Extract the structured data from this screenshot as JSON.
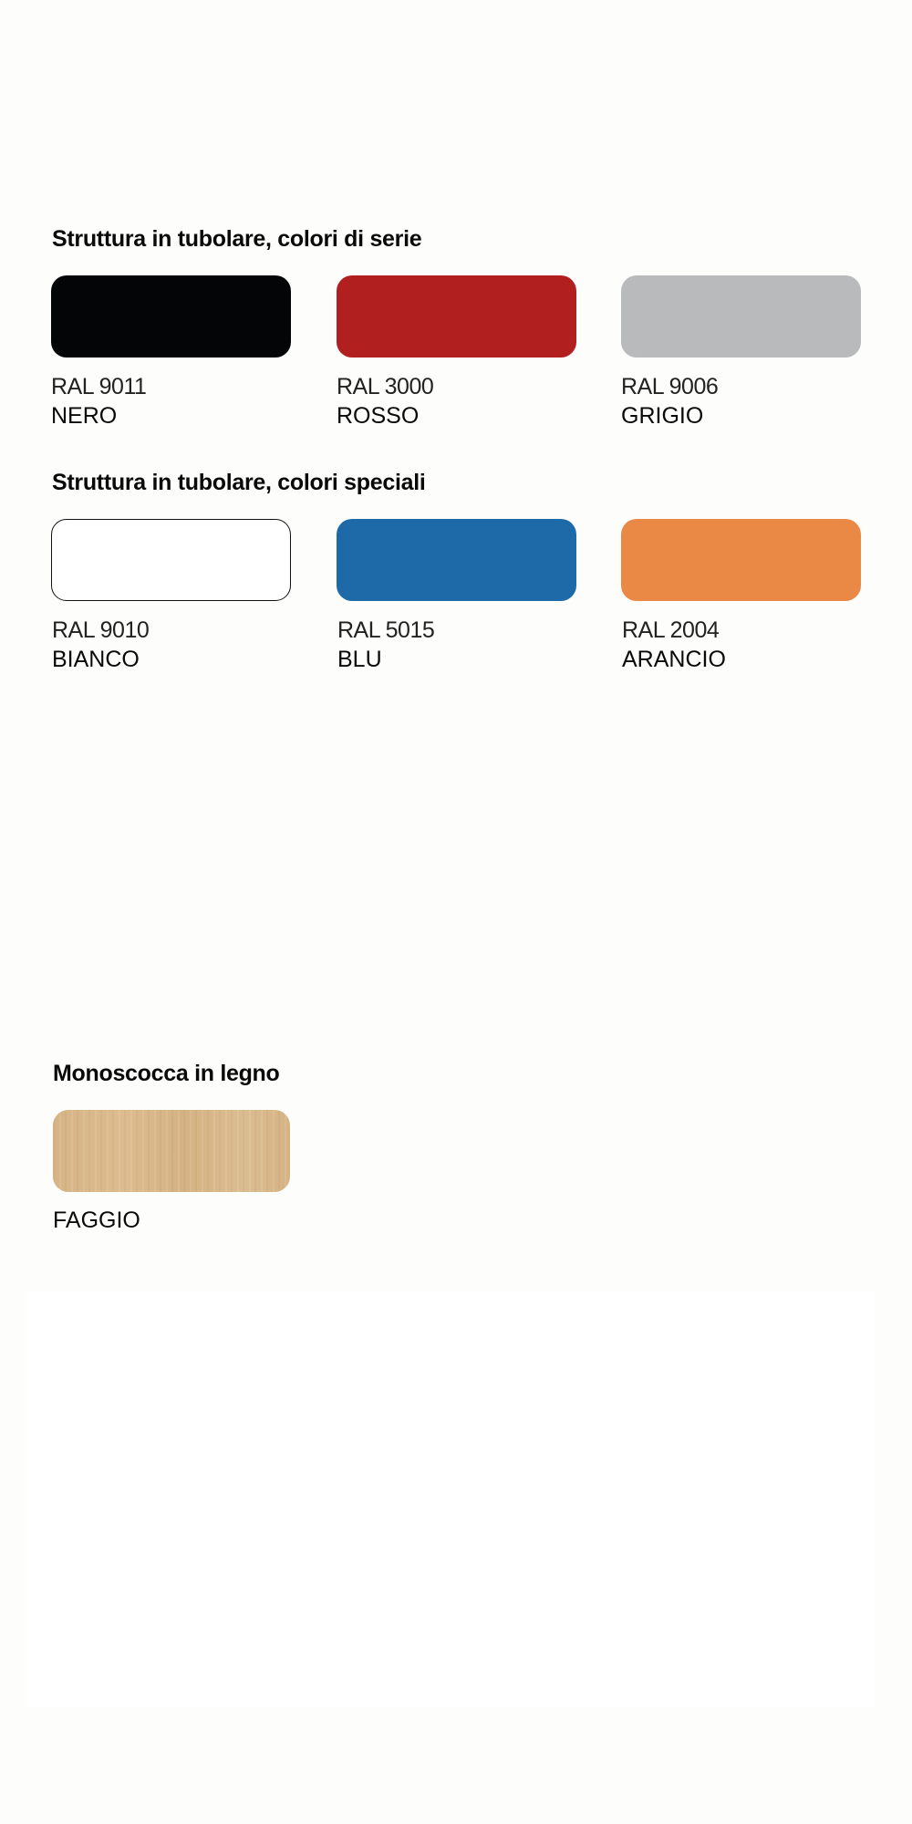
{
  "sections": [
    {
      "title": "Struttura in tubolare, colori di serie",
      "colors": [
        {
          "ral": "RAL 9011",
          "name": "NERO",
          "hex": "#030506"
        },
        {
          "ral": "RAL 3000",
          "name": "ROSSO",
          "hex": "#b21f1f"
        },
        {
          "ral": "RAL 9006",
          "name": "GRIGIO",
          "hex": "#b9babb"
        }
      ]
    },
    {
      "title": "Struttura in tubolare, colori speciali",
      "colors": [
        {
          "ral": "RAL 9010",
          "name": "BIANCO",
          "hex": "#ffffff"
        },
        {
          "ral": "RAL 5015",
          "name": "BLU",
          "hex": "#1e69a7"
        },
        {
          "ral": "RAL 2004",
          "name": "ARANCIO",
          "hex": "#ea8846"
        }
      ]
    },
    {
      "title": "Monoscocca in legno",
      "finishes": [
        {
          "name": "FAGGIO",
          "texture": "beech-wood"
        }
      ]
    }
  ]
}
